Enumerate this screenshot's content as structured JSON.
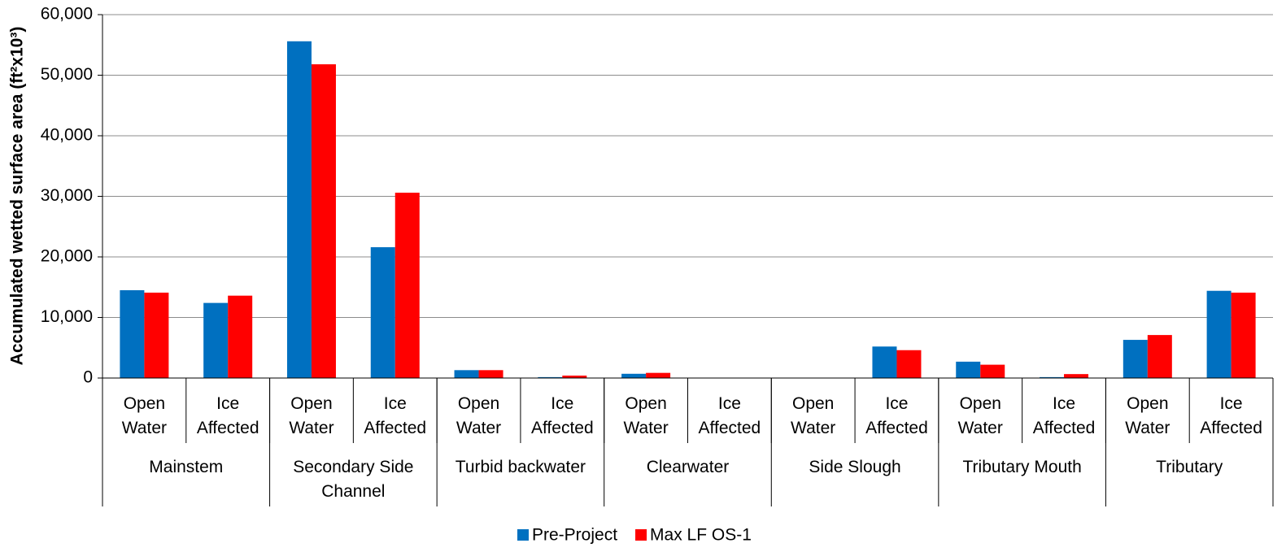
{
  "chart_data": {
    "type": "bar",
    "y_label": "Accumulated wetted surface area (ft²x10³)",
    "categories": [
      "Open Water",
      "Ice Affected",
      "Open Water",
      "Ice Affected",
      "Open Water",
      "Ice Affected",
      "Open Water",
      "Ice Affected",
      "Open Water",
      "Ice Affected",
      "Open Water",
      "Ice Affected",
      "Open Water",
      "Ice Affected"
    ],
    "groups": [
      "Mainstem",
      "Secondary Side Channel",
      "Turbid backwater",
      "Clearwater",
      "Side Slough",
      "Tributary Mouth",
      "Tributary"
    ],
    "series": [
      {
        "name": "Pre-Project",
        "color": "#0070c0",
        "values": [
          14500,
          12400,
          55600,
          21600,
          1300,
          150,
          700,
          0,
          0,
          5200,
          2700,
          150,
          6300,
          14400
        ]
      },
      {
        "name": "Max LF OS-1",
        "color": "#ff0000",
        "values": [
          14100,
          13600,
          51800,
          30600,
          1300,
          400,
          850,
          0,
          0,
          4600,
          2200,
          650,
          7100,
          14100
        ]
      }
    ],
    "ylim": [
      0,
      60000
    ],
    "yticks": [
      0,
      {
        "value": 10000,
        "label": "10,000"
      },
      {
        "value": 20000,
        "label": "20,000"
      },
      {
        "value": 30000,
        "label": "30,000"
      },
      {
        "value": 40000,
        "label": "40,000"
      },
      {
        "value": 50000,
        "label": "50,000"
      },
      {
        "value": 60000,
        "label": "60,000"
      }
    ],
    "grid": true,
    "legend": "bottom"
  }
}
